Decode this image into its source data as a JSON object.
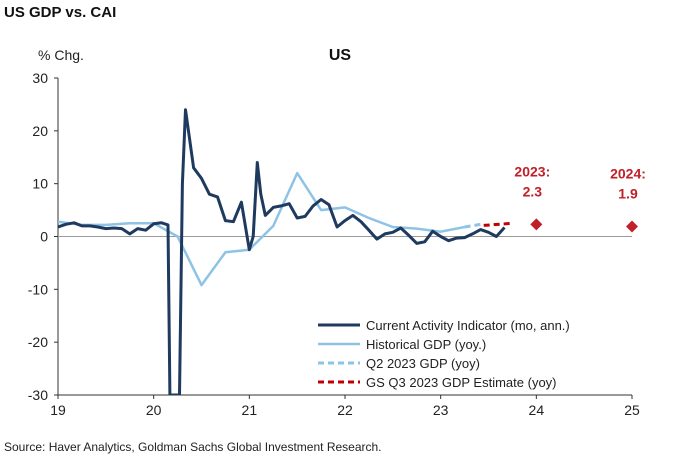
{
  "header": {
    "title": "US GDP vs. CAI"
  },
  "footer": {
    "source": "Source: Haver Analytics, Goldman Sachs Global Investment Research."
  },
  "chart_data": {
    "type": "line",
    "title": "US",
    "ylabel": "% Chg.",
    "xlabel": "",
    "ylim": [
      -30,
      30
    ],
    "xlim": [
      19,
      25
    ],
    "yticks": [
      30,
      20,
      10,
      0,
      -10,
      -20,
      -30
    ],
    "xticks": [
      "19",
      "20",
      "21",
      "22",
      "23",
      "24",
      "25"
    ],
    "grid": false,
    "legend_position": "bottom-right",
    "colors": {
      "cai": "#1f3a5f",
      "historical": "#8ec3e6",
      "q2": "#8ec3e6",
      "gs": "#c00000",
      "zero_line": "#9a9a9a",
      "annotation": "#c0202a"
    },
    "series": [
      {
        "name": "Current Activity Indicator (mo, ann.)",
        "style": "solid",
        "x": [
          19.0,
          19.083,
          19.167,
          19.25,
          19.333,
          19.417,
          19.5,
          19.583,
          19.667,
          19.75,
          19.833,
          19.917,
          20.0,
          20.083,
          20.15,
          20.17,
          20.25,
          20.27,
          20.3,
          20.333,
          20.417,
          20.5,
          20.583,
          20.667,
          20.75,
          20.833,
          20.917,
          21.0,
          21.04,
          21.083,
          21.12,
          21.167,
          21.25,
          21.333,
          21.417,
          21.5,
          21.583,
          21.667,
          21.75,
          21.833,
          21.917,
          22.0,
          22.083,
          22.167,
          22.25,
          22.333,
          22.417,
          22.5,
          22.583,
          22.667,
          22.75,
          22.833,
          22.917,
          23.0,
          23.083,
          23.167,
          23.25,
          23.333,
          23.417,
          23.5,
          23.583,
          23.667
        ],
        "values": [
          1.8,
          2.3,
          2.6,
          2.0,
          2.0,
          1.8,
          1.5,
          1.6,
          1.5,
          0.5,
          1.5,
          1.2,
          2.4,
          2.6,
          2.2,
          -30,
          -30,
          -30,
          10.0,
          24.0,
          13.0,
          11.0,
          8.0,
          7.5,
          3.0,
          2.8,
          6.5,
          -2.5,
          0.0,
          14.0,
          8.0,
          4.0,
          5.5,
          5.8,
          6.2,
          3.5,
          3.8,
          5.8,
          7.0,
          6.0,
          1.8,
          3.0,
          4.0,
          2.8,
          1.2,
          -0.5,
          0.5,
          0.8,
          1.6,
          0.2,
          -1.3,
          -1.0,
          1.0,
          0.0,
          -0.8,
          -0.3,
          -0.2,
          0.5,
          1.3,
          0.8,
          0.0,
          1.7
        ]
      },
      {
        "name": "Historical GDP (yoy.)",
        "style": "solid",
        "x": [
          19.0,
          19.25,
          19.5,
          19.75,
          20.0,
          20.25,
          20.5,
          20.75,
          21.0,
          21.25,
          21.5,
          21.75,
          22.0,
          22.25,
          22.5,
          22.75,
          23.0,
          23.25
        ],
        "values": [
          2.8,
          2.2,
          2.2,
          2.5,
          2.5,
          0.0,
          -9.2,
          -3.0,
          -2.5,
          2.0,
          12.0,
          5.0,
          5.5,
          3.5,
          1.8,
          1.5,
          0.9,
          1.8
        ]
      },
      {
        "name": "Q2 2023 GDP (yoy)",
        "style": "dashed",
        "x": [
          23.25,
          23.45
        ],
        "values": [
          1.8,
          2.4
        ]
      },
      {
        "name": "GS Q3 2023 GDP Estimate (yoy)",
        "style": "dashed",
        "x": [
          23.45,
          23.75
        ],
        "values": [
          2.1,
          2.5
        ]
      }
    ],
    "points": [
      {
        "label": "2023:",
        "value_label": "2.3",
        "x": 24.0,
        "value": 2.3
      },
      {
        "label": "2024:",
        "value_label": "1.9",
        "x": 25.0,
        "value": 1.9
      }
    ]
  }
}
